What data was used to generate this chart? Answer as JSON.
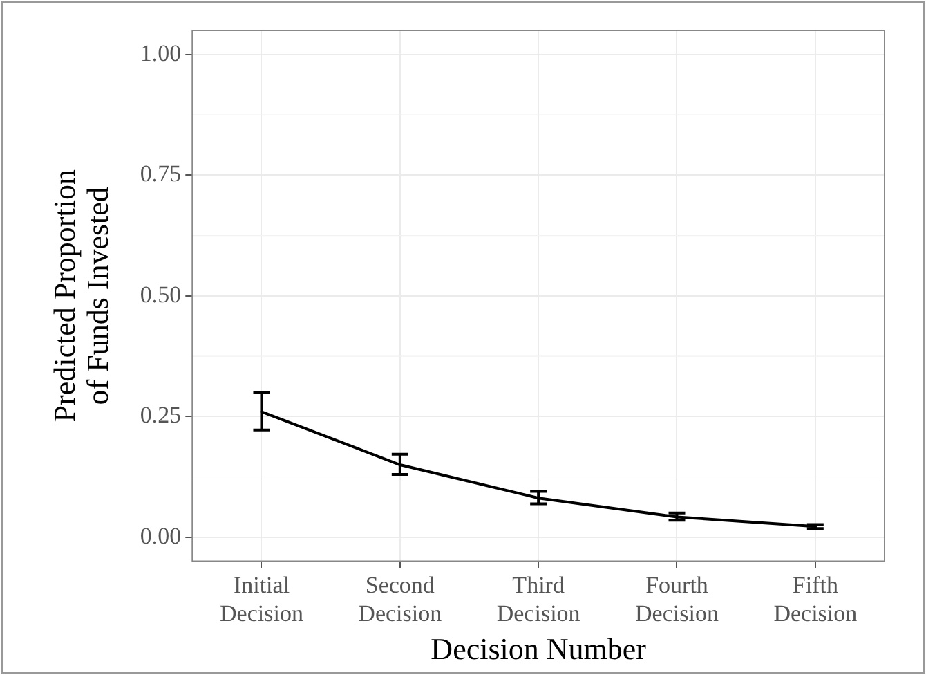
{
  "chart_data": {
    "type": "line",
    "xlabel": "Decision Number",
    "ylabel": "Predicted Proportion\nof Funds Invested",
    "categories": [
      "Initial Decision",
      "Second Decision",
      "Third Decision",
      "Fourth Decision",
      "Fifth Decision"
    ],
    "series": [
      {
        "color": "#000000",
        "values": [
          0.26,
          0.15,
          0.081,
          0.042,
          0.022
        ],
        "errors": [
          [
            0.222,
            0.3
          ],
          [
            0.13,
            0.172
          ],
          [
            0.069,
            0.095
          ],
          [
            0.035,
            0.05
          ],
          [
            0.018,
            0.026
          ]
        ]
      }
    ],
    "ylim": [
      -0.05,
      1.05
    ],
    "yticks": [
      {
        "value": 0,
        "label": "0.00"
      },
      {
        "value": 0.25,
        "label": "0.25"
      },
      {
        "value": 0.5,
        "label": "0.50"
      },
      {
        "value": 0.75,
        "label": "0.75"
      },
      {
        "value": 1,
        "label": "1.00"
      }
    ],
    "grid": true,
    "marker": "none",
    "line_style": "solid"
  }
}
